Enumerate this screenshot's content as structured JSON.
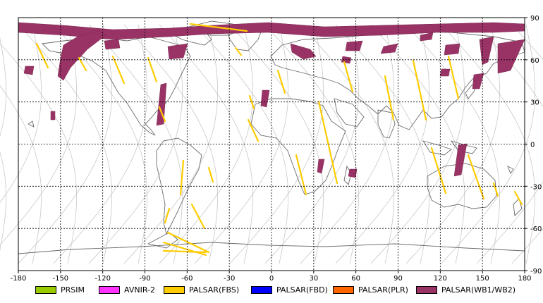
{
  "map": {
    "x_ticks": [
      "-180",
      "-150",
      "-120",
      "-90",
      "-60",
      "-30",
      "0",
      "30",
      "60",
      "90",
      "120",
      "150",
      "180"
    ],
    "y_ticks": [
      "90",
      "60",
      "30",
      "0",
      "-30",
      "-60",
      "-90"
    ],
    "x_range": [
      -180,
      180
    ],
    "y_range": [
      -90,
      90
    ],
    "grid": "dashed",
    "colors": {
      "background": "#ffffff",
      "coastline": "#6b6b6b",
      "orbit": "#c8c8c8",
      "palsar_fbs": "#ffcc00",
      "palsar_wb": "#993366"
    }
  },
  "legend": [
    {
      "label": "PRSIM",
      "color": "#99cc00"
    },
    {
      "label": "AVNIR-2",
      "color": "#ff33ff"
    },
    {
      "label": "PALSAR(FBS)",
      "color": "#ffcc00"
    },
    {
      "label": "PALSAR(FBD)",
      "color": "#0000ff"
    },
    {
      "label": "PALSAR(PLR)",
      "color": "#ff6600"
    },
    {
      "label": "PALSAR(WB1/WB2)",
      "color": "#993366"
    }
  ]
}
